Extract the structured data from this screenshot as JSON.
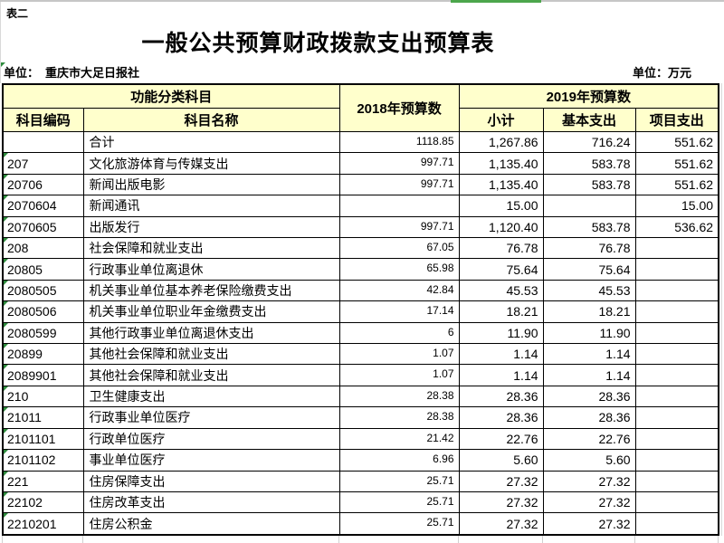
{
  "page": {
    "tag": "表二",
    "title": "一般公共预算财政拨款支出预算表",
    "unit_left_label": "单位：",
    "unit_left_value": "重庆市大足日报社",
    "unit_right": "单位：万元"
  },
  "table": {
    "headers": {
      "func_group": "功能分类科目",
      "code": "科目编码",
      "name": "科目名称",
      "y2018": "2018年预算数",
      "y2019_group": "2019年预算数",
      "subtotal": "小计",
      "basic": "基本支出",
      "project": "项目支出"
    },
    "rows": [
      {
        "code": "",
        "name": "合计",
        "y2018": "1118.85",
        "subtotal": "1,267.86",
        "basic": "716.24",
        "project": "551.62",
        "flag": false
      },
      {
        "code": "207",
        "name": "文化旅游体育与传媒支出",
        "y2018": "997.71",
        "subtotal": "1,135.40",
        "basic": "583.78",
        "project": "551.62",
        "flag": true
      },
      {
        "code": "20706",
        "name": "新闻出版电影",
        "y2018": "997.71",
        "subtotal": "1,135.40",
        "basic": "583.78",
        "project": "551.62",
        "flag": true
      },
      {
        "code": "2070604",
        "name": "新闻通讯",
        "y2018": "",
        "subtotal": "15.00",
        "basic": "",
        "project": "15.00",
        "flag": true
      },
      {
        "code": "2070605",
        "name": "出版发行",
        "y2018": "997.71",
        "subtotal": "1,120.40",
        "basic": "583.78",
        "project": "536.62",
        "flag": true
      },
      {
        "code": "208",
        "name": "社会保障和就业支出",
        "y2018": "67.05",
        "subtotal": "76.78",
        "basic": "76.78",
        "project": "",
        "flag": true
      },
      {
        "code": "20805",
        "name": "行政事业单位离退休",
        "y2018": "65.98",
        "subtotal": "75.64",
        "basic": "75.64",
        "project": "",
        "flag": true
      },
      {
        "code": "2080505",
        "name": "机关事业单位基本养老保险缴费支出",
        "y2018": "42.84",
        "subtotal": "45.53",
        "basic": "45.53",
        "project": "",
        "flag": true
      },
      {
        "code": "2080506",
        "name": "机关事业单位职业年金缴费支出",
        "y2018": "17.14",
        "subtotal": "18.21",
        "basic": "18.21",
        "project": "",
        "flag": true
      },
      {
        "code": "2080599",
        "name": "其他行政事业单位离退休支出",
        "y2018": "6",
        "subtotal": "11.90",
        "basic": "11.90",
        "project": "",
        "flag": true
      },
      {
        "code": "20899",
        "name": "其他社会保障和就业支出",
        "y2018": "1.07",
        "subtotal": "1.14",
        "basic": "1.14",
        "project": "",
        "flag": true
      },
      {
        "code": "2089901",
        "name": "其他社会保障和就业支出",
        "y2018": "1.07",
        "subtotal": "1.14",
        "basic": "1.14",
        "project": "",
        "flag": true
      },
      {
        "code": "210",
        "name": "卫生健康支出",
        "y2018": "28.38",
        "subtotal": "28.36",
        "basic": "28.36",
        "project": "",
        "flag": true
      },
      {
        "code": "21011",
        "name": "行政事业单位医疗",
        "y2018": "28.38",
        "subtotal": "28.36",
        "basic": "28.36",
        "project": "",
        "flag": true
      },
      {
        "code": "2101101",
        "name": "行政单位医疗",
        "y2018": "21.42",
        "subtotal": "22.76",
        "basic": "22.76",
        "project": "",
        "flag": true
      },
      {
        "code": "2101102",
        "name": "事业单位医疗",
        "y2018": "6.96",
        "subtotal": "5.60",
        "basic": "5.60",
        "project": "",
        "flag": true
      },
      {
        "code": "221",
        "name": "住房保障支出",
        "y2018": "25.71",
        "subtotal": "27.32",
        "basic": "27.32",
        "project": "",
        "flag": true
      },
      {
        "code": "22102",
        "name": "住房改革支出",
        "y2018": "25.71",
        "subtotal": "27.32",
        "basic": "27.32",
        "project": "",
        "flag": true
      },
      {
        "code": "2210201",
        "name": "住房公积金",
        "y2018": "25.71",
        "subtotal": "27.32",
        "basic": "27.32",
        "project": "",
        "flag": true
      }
    ]
  },
  "colors": {
    "header_bg": "#FFFFCC",
    "table_border": "#000000",
    "error_triangle_green": "#2E8B3D",
    "top_progress_green": "#4CA64C",
    "gridline_gray": "#D9D9D9"
  }
}
